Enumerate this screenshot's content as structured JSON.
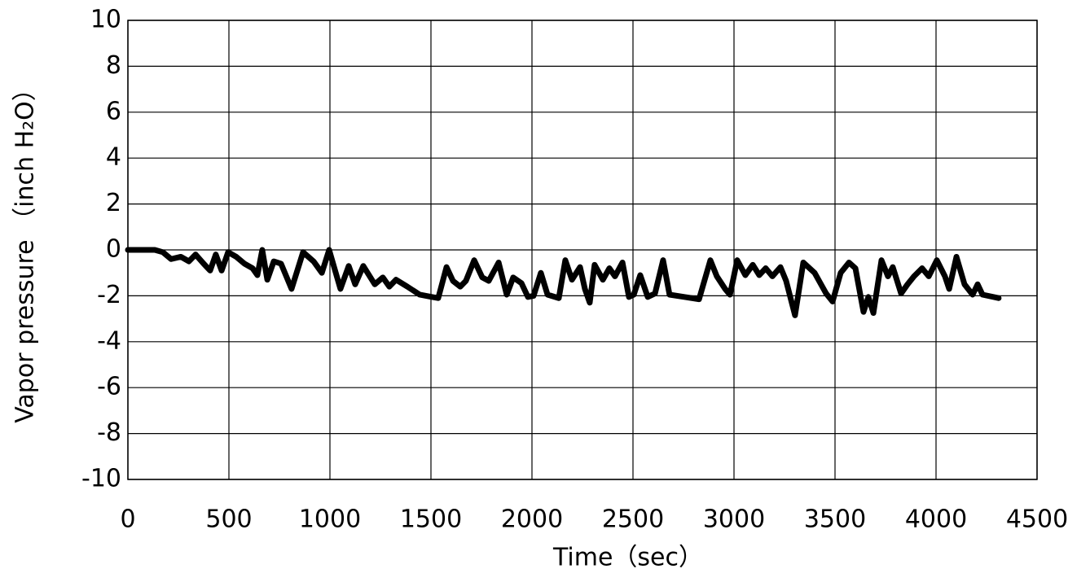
{
  "chart_data": {
    "type": "line",
    "x_label": "Time（sec）",
    "y_label": "Vapor pressure （inch H₂O）",
    "x": [
      0,
      133,
      173,
      214,
      262,
      302,
      335,
      375,
      407,
      435,
      464,
      496,
      536,
      577,
      617,
      641,
      665,
      690,
      722,
      758,
      810,
      867,
      919,
      960,
      996,
      1052,
      1093,
      1125,
      1165,
      1222,
      1262,
      1294,
      1327,
      1383,
      1444,
      1504,
      1536,
      1577,
      1609,
      1645,
      1673,
      1714,
      1754,
      1786,
      1835,
      1875,
      1907,
      1948,
      1980,
      2008,
      2044,
      2077,
      2133,
      2165,
      2198,
      2238,
      2262,
      2286,
      2310,
      2351,
      2383,
      2411,
      2448,
      2480,
      2504,
      2536,
      2573,
      2609,
      2649,
      2681,
      2754,
      2827,
      2883,
      2915,
      2956,
      2980,
      3016,
      3056,
      3093,
      3125,
      3157,
      3190,
      3230,
      3258,
      3302,
      3343,
      3399,
      3456,
      3488,
      3528,
      3569,
      3601,
      3641,
      3665,
      3690,
      3730,
      3762,
      3786,
      3827,
      3859,
      3891,
      3931,
      3964,
      4004,
      4044,
      4065,
      4101,
      4141,
      4181,
      4206,
      4230,
      4310
    ],
    "series": [
      {
        "color": "#000000",
        "values": [
          0,
          0,
          -0.1,
          -0.4,
          -0.3,
          -0.5,
          -0.2,
          -0.6,
          -0.9,
          -0.2,
          -0.9,
          -0.1,
          -0.3,
          -0.6,
          -0.8,
          -1.1,
          0,
          -1.3,
          -0.5,
          -0.6,
          -1.7,
          -0.1,
          -0.5,
          -1.0,
          0,
          -1.7,
          -0.7,
          -1.5,
          -0.7,
          -1.5,
          -1.2,
          -1.6,
          -1.3,
          -1.6,
          -1.95,
          -2.05,
          -2.1,
          -0.75,
          -1.35,
          -1.6,
          -1.35,
          -0.45,
          -1.2,
          -1.35,
          -0.55,
          -1.95,
          -1.2,
          -1.45,
          -2.05,
          -2.0,
          -1.0,
          -1.95,
          -2.1,
          -0.45,
          -1.3,
          -0.75,
          -1.7,
          -2.3,
          -0.65,
          -1.3,
          -0.8,
          -1.15,
          -0.55,
          -2.05,
          -1.95,
          -1.1,
          -2.05,
          -1.9,
          -0.45,
          -1.95,
          -2.05,
          -2.15,
          -0.45,
          -1.15,
          -1.7,
          -1.95,
          -0.45,
          -1.1,
          -0.65,
          -1.1,
          -0.8,
          -1.15,
          -0.75,
          -1.35,
          -2.85,
          -0.55,
          -1.0,
          -1.9,
          -2.25,
          -1.0,
          -0.55,
          -0.8,
          -2.7,
          -2.05,
          -2.75,
          -0.45,
          -1.15,
          -0.75,
          -1.9,
          -1.5,
          -1.15,
          -0.8,
          -1.15,
          -0.45,
          -1.15,
          -1.7,
          -0.3,
          -1.5,
          -1.95,
          -1.5,
          -1.95,
          -2.1
        ]
      }
    ],
    "xlim": [
      0,
      4500
    ],
    "xticks": [
      0,
      500,
      1000,
      1500,
      2000,
      2500,
      3000,
      3500,
      4000,
      4500
    ],
    "ylim": [
      -10,
      10
    ],
    "yticks": [
      -10,
      -8,
      -6,
      -4,
      -2,
      0,
      2,
      4,
      6,
      8,
      10
    ],
    "grid": true
  }
}
